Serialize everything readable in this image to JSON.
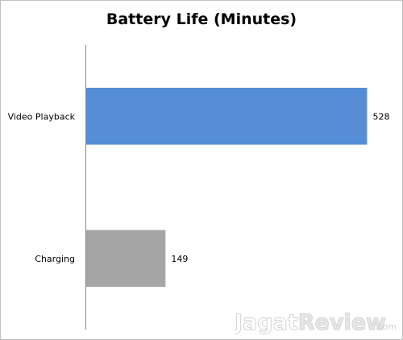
{
  "chart_data": {
    "type": "bar",
    "orientation": "horizontal",
    "title": "Battery Life (Minutes)",
    "categories": [
      "Video Playback",
      "Charging"
    ],
    "values": [
      528,
      149
    ],
    "colors": [
      "#558ed5",
      "#a6a6a6"
    ],
    "xlim": [
      0,
      550
    ],
    "grid": false,
    "legend": "none",
    "data_labels": true
  },
  "watermark": {
    "text_part1": "Jagat",
    "text_part2": "Review",
    "suffix": ".com"
  }
}
